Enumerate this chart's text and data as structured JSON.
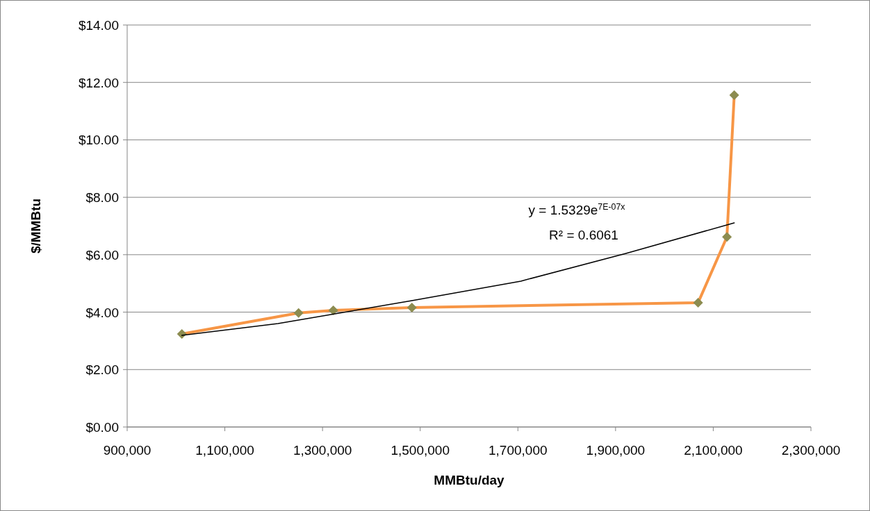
{
  "chart_data": {
    "type": "line",
    "xlabel": "MMBtu/day",
    "ylabel": "$/MMBtu",
    "xlim": [
      900000,
      2300000
    ],
    "xticks": [
      {
        "value": 900000,
        "label": "900,000"
      },
      {
        "value": 1100000,
        "label": "1,100,000"
      },
      {
        "value": 1300000,
        "label": "1,300,000"
      },
      {
        "value": 1500000,
        "label": "1,500,000"
      },
      {
        "value": 1700000,
        "label": "1,700,000"
      },
      {
        "value": 1900000,
        "label": "1,900,000"
      },
      {
        "value": 2100000,
        "label": "2,100,000"
      },
      {
        "value": 2300000,
        "label": "2,300,000"
      }
    ],
    "ylim": [
      0,
      14
    ],
    "yticks": [
      {
        "value": 0,
        "label": "$0.00"
      },
      {
        "value": 2,
        "label": "$2.00"
      },
      {
        "value": 4,
        "label": "$4.00"
      },
      {
        "value": 6,
        "label": "$6.00"
      },
      {
        "value": 8,
        "label": "$8.00"
      },
      {
        "value": 10,
        "label": "$10.00"
      },
      {
        "value": 12,
        "label": "$12.00"
      },
      {
        "value": 14,
        "label": "$14.00"
      }
    ],
    "grid": "y",
    "marker": "diamond",
    "line_style": "solid",
    "series": [
      {
        "color": "#f79646",
        "x": [
          1012000,
          1251000,
          1322000,
          1483000,
          2069000,
          2128000,
          2143000
        ],
        "values": [
          3.24,
          3.97,
          4.06,
          4.16,
          4.33,
          6.62,
          11.56
        ]
      },
      {
        "color": "#000000",
        "marker": "none",
        "x": [
          1012000,
          1209000,
          1483000,
          1706000,
          1920000,
          2143000
        ],
        "values": [
          3.19,
          3.6,
          4.4,
          5.08,
          6.04,
          7.11
        ]
      }
    ],
    "annotations": [
      "y = 1.5329e$^{7E-07x}$",
      "R² = 0.6061"
    ]
  }
}
